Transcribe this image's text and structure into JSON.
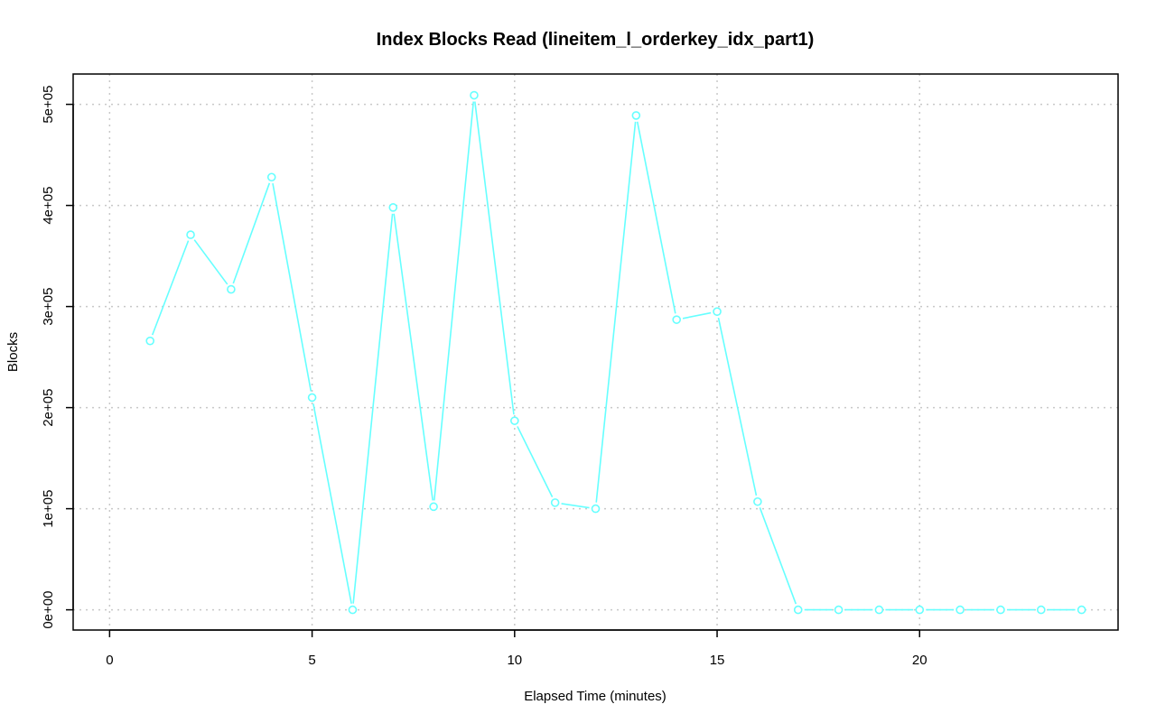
{
  "chart_data": {
    "type": "line",
    "title": "Index Blocks Read (lineitem_l_orderkey_idx_part1)",
    "xlabel": "Elapsed Time (minutes)",
    "ylabel": "Blocks",
    "xlim": [
      -0.9,
      24.9
    ],
    "ylim": [
      -20000,
      530000
    ],
    "x_ticks": [
      0,
      5,
      10,
      15,
      20
    ],
    "x_tick_labels": [
      "0",
      "5",
      "10",
      "15",
      "20"
    ],
    "y_ticks": [
      0,
      100000,
      200000,
      300000,
      400000,
      500000
    ],
    "y_tick_labels": [
      "0e+00",
      "1e+05",
      "2e+05",
      "3e+05",
      "4e+05",
      "5e+05"
    ],
    "grid": true,
    "color": "#66ffff",
    "x": [
      1,
      2,
      3,
      4,
      5,
      6,
      7,
      8,
      9,
      10,
      11,
      12,
      13,
      14,
      15,
      16,
      17,
      18,
      19,
      20,
      21,
      22,
      23,
      24
    ],
    "y": [
      266000,
      371000,
      317000,
      428000,
      210000,
      0,
      398000,
      102000,
      509000,
      187000,
      106000,
      100000,
      489000,
      287000,
      295000,
      107000,
      0,
      0,
      0,
      0,
      0,
      0,
      0,
      0
    ]
  }
}
